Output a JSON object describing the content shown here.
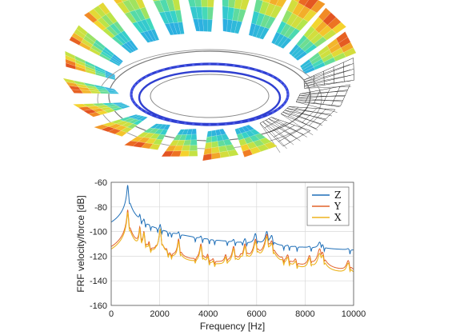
{
  "figure": {
    "top_panel": "3d-blade-wheel-mode-shape-mesh",
    "colormap": [
      "#1f3fbf",
      "#2aa7e6",
      "#38d7c4",
      "#b6e64a",
      "#f5d42e",
      "#f07a24",
      "#d42a1e"
    ],
    "ring_color": "#2f3fd0",
    "mesh_color": "#222222"
  },
  "chart_data": {
    "type": "line",
    "xlabel": "Frequency [Hz]",
    "ylabel": "FRF velocity/force [dB]",
    "xlim": [
      0,
      10000
    ],
    "ylim": [
      -160,
      -60
    ],
    "xticks": [
      "0",
      "2000",
      "4000",
      "6000",
      "8000",
      "10000"
    ],
    "yticks": [
      "-60",
      "-80",
      "-100",
      "-120",
      "-140",
      "-160"
    ],
    "grid": true,
    "legend_position": "top-right",
    "baseline_db": -148,
    "series": [
      {
        "name": "Z",
        "color": "#1f6fb8"
      },
      {
        "name": "Y",
        "color": "#e2622a"
      },
      {
        "name": "X",
        "color": "#edb41f"
      }
    ],
    "peaks": [
      {
        "f": 680,
        "z": -62,
        "y": -82,
        "x": -84
      },
      {
        "f": 1180,
        "z": -88,
        "y": -96,
        "x": -98
      },
      {
        "f": 1350,
        "z": -93,
        "y": -100,
        "x": -101
      },
      {
        "f": 1560,
        "z": -104,
        "y": -110,
        "x": -112
      },
      {
        "f": 1850,
        "z": -110,
        "y": -118,
        "x": -120
      },
      {
        "f": 2020,
        "z": -96,
        "y": -98,
        "x": -98
      },
      {
        "f": 2280,
        "z": -112,
        "y": -118,
        "x": -120
      },
      {
        "f": 2420,
        "z": -124,
        "y": -128,
        "x": -130
      },
      {
        "f": 2780,
        "z": -104,
        "y": -106,
        "x": -108
      },
      {
        "f": 3400,
        "z": -130,
        "y": -134,
        "x": -135
      },
      {
        "f": 3700,
        "z": -108,
        "y": -110,
        "x": -112
      },
      {
        "f": 3980,
        "z": -118,
        "y": -120,
        "x": -122
      },
      {
        "f": 4200,
        "z": -124,
        "y": -126,
        "x": -128
      },
      {
        "f": 4720,
        "z": -118,
        "y": -120,
        "x": -122
      },
      {
        "f": 5050,
        "z": -110,
        "y": -112,
        "x": -114
      },
      {
        "f": 5350,
        "z": -120,
        "y": -122,
        "x": -124
      },
      {
        "f": 5520,
        "z": -108,
        "y": -110,
        "x": -112
      },
      {
        "f": 5950,
        "z": -102,
        "y": -106,
        "x": -108
      },
      {
        "f": 6420,
        "z": -100,
        "y": -102,
        "x": -104
      },
      {
        "f": 6620,
        "z": -104,
        "y": -108,
        "x": -110
      },
      {
        "f": 7050,
        "z": -124,
        "y": -126,
        "x": -128
      },
      {
        "f": 7280,
        "z": -118,
        "y": -120,
        "x": -122
      },
      {
        "f": 7600,
        "z": -122,
        "y": -124,
        "x": -126
      },
      {
        "f": 8180,
        "z": -118,
        "y": -120,
        "x": -122
      },
      {
        "f": 8600,
        "z": -110,
        "y": -114,
        "x": -118
      },
      {
        "f": 8720,
        "z": -114,
        "y": -118,
        "x": -120
      },
      {
        "f": 9780,
        "z": -120,
        "y": -124,
        "x": -126
      }
    ]
  }
}
